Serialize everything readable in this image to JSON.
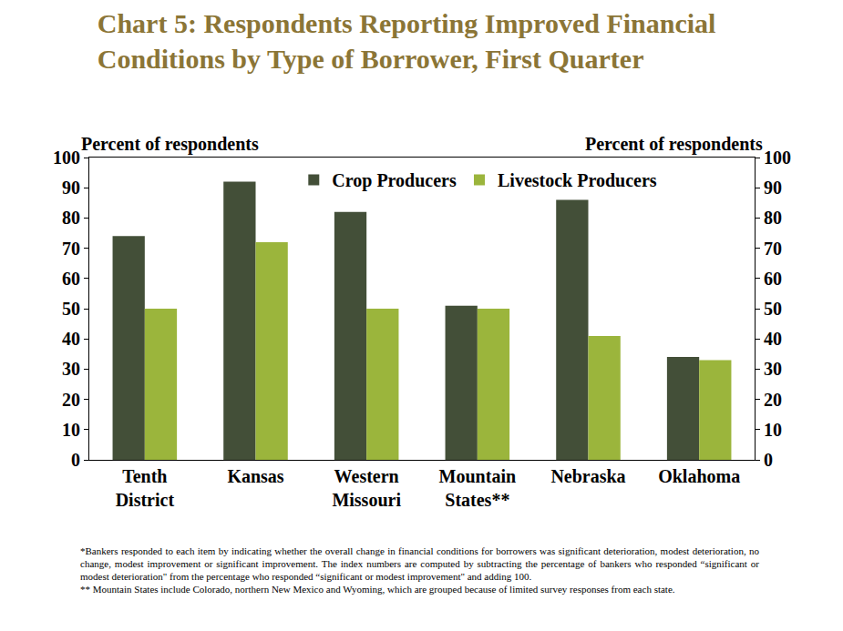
{
  "chart_data": {
    "type": "bar",
    "title": "Chart 5: Respondents Reporting Improved Financial Conditions by Type of Borrower, First Quarter",
    "ylabel": "Percent of respondents",
    "y2label": "Percent of respondents",
    "categories": [
      "Tenth District",
      "Kansas",
      "Western Missouri",
      "Mountain States**",
      "Nebraska",
      "Oklahoma"
    ],
    "series": [
      {
        "name": "Crop Producers",
        "color": "#434f38",
        "values": [
          74,
          92,
          82,
          51,
          86,
          34
        ]
      },
      {
        "name": "Livestock Producers",
        "color": "#9bb53c",
        "values": [
          50,
          72,
          50,
          50,
          41,
          33
        ]
      }
    ],
    "ylim": [
      0,
      100
    ],
    "yticks": [
      0,
      10,
      20,
      30,
      40,
      50,
      60,
      70,
      80,
      90,
      100
    ],
    "y2lim": [
      0,
      100
    ],
    "y2ticks": [
      0,
      10,
      20,
      30,
      40,
      50,
      60,
      70,
      80,
      90,
      100
    ],
    "grid": false,
    "legend": "top",
    "notes": [
      "*Bankers responded to each item by indicating whether the overall change in financial conditions for borrowers was significant deterioration, modest deterioration, no change, modest improvement or significant improvement.  The index numbers are computed by subtracting the percentage of bankers who responded “significant or modest deterioration\" from the percentage who responded “significant or modest improvement\" and adding 100.",
      "** Mountain States include Colorado, northern New Mexico and Wyoming, which are grouped because of limited survey responses from each state."
    ]
  }
}
